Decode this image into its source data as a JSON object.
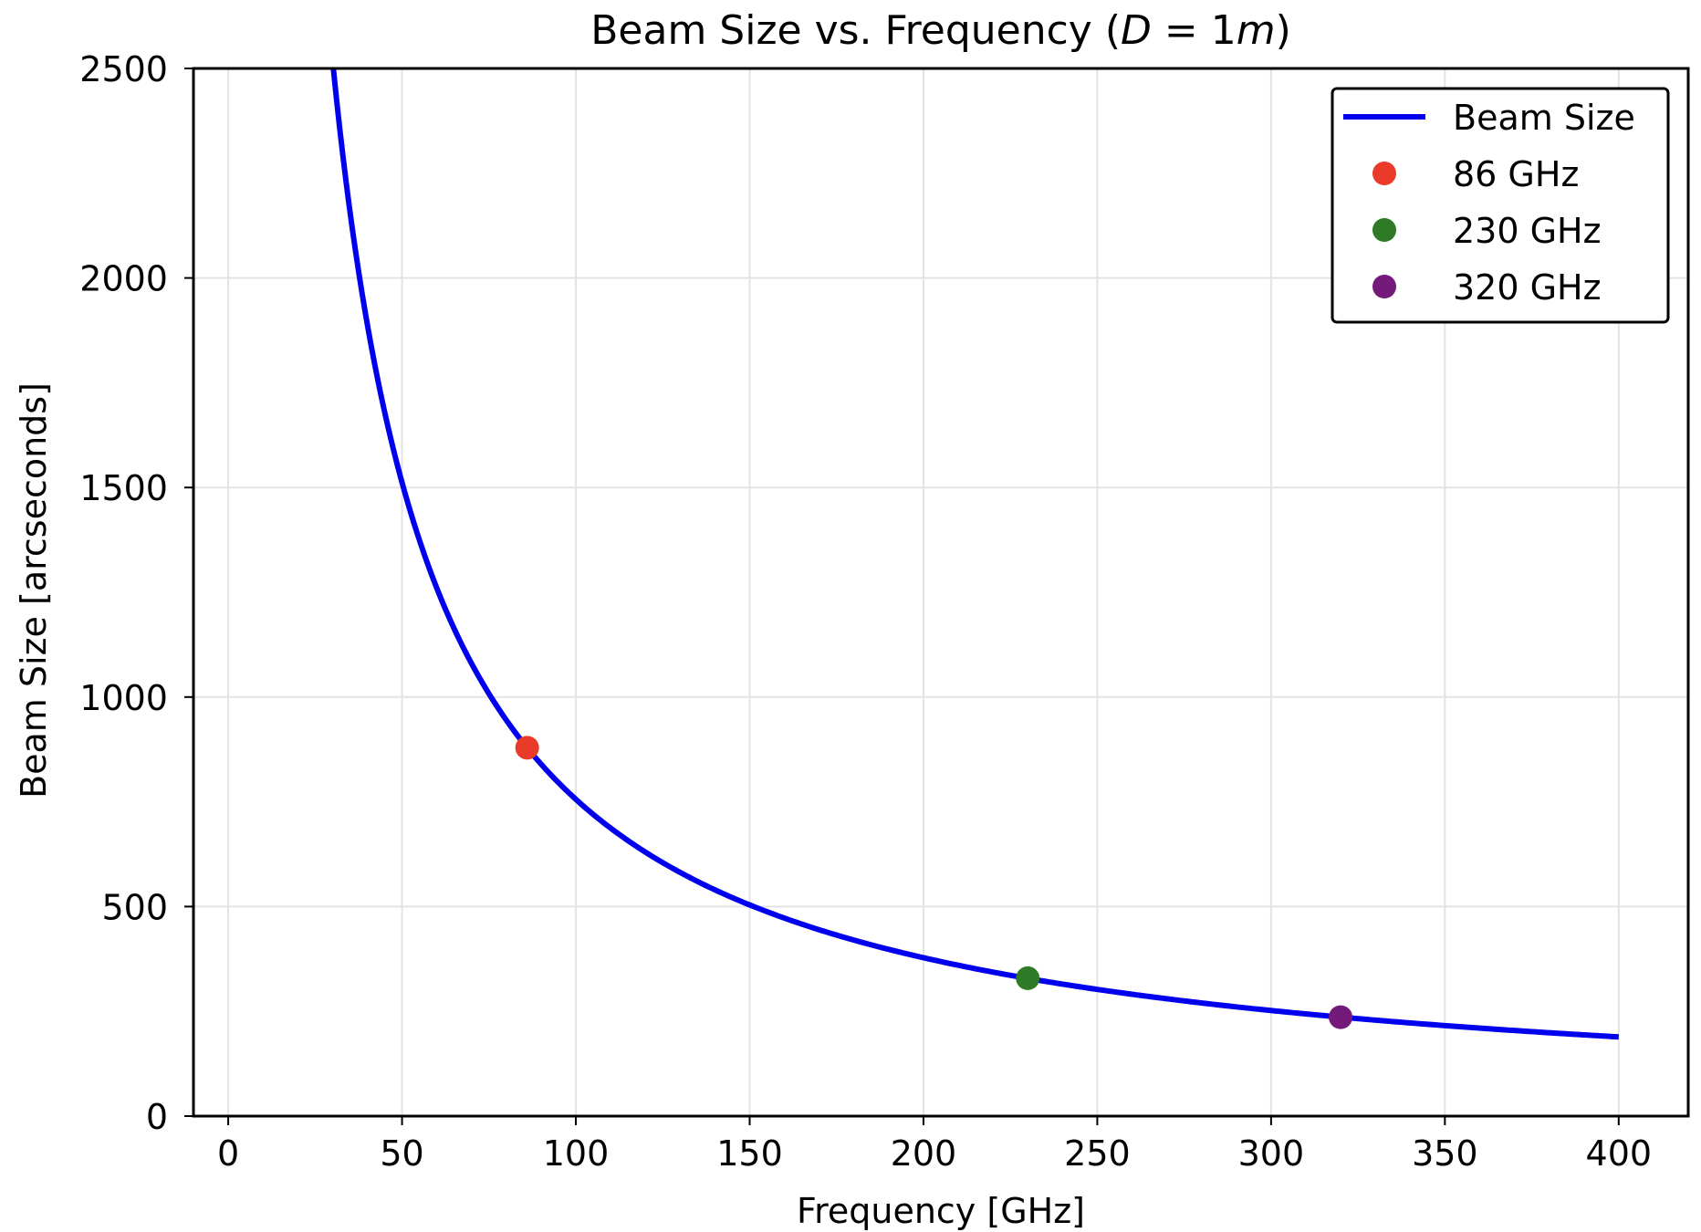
{
  "chart_data": {
    "type": "line",
    "title": {
      "prefix": "Beam Size vs. Frequency (",
      "var_d": "D",
      "eq": " = 1",
      "var_m": "m",
      "suffix": ")"
    },
    "xlabel": "Frequency [GHz]",
    "ylabel": "Beam Size [arcseconds]",
    "xlim": [
      -10,
      420
    ],
    "ylim": [
      0,
      2500
    ],
    "xticks": [
      "0",
      "50",
      "100",
      "150",
      "200",
      "250",
      "300",
      "350",
      "400"
    ],
    "yticks": [
      "0",
      "500",
      "1000",
      "1500",
      "2000",
      "2500"
    ],
    "grid": true,
    "legend_position": "top-right",
    "series": [
      {
        "name": "Beam Size",
        "color": "#0000ee",
        "kind": "line",
        "formula": "beam = 75600 / frequency",
        "x": [
          30,
          35,
          40,
          45,
          50,
          60,
          70,
          86,
          100,
          120,
          150,
          200,
          230,
          250,
          300,
          320,
          350,
          400
        ],
        "y": [
          2520,
          2160,
          1890,
          1680,
          1512,
          1260,
          1080,
          879,
          756,
          630,
          504,
          378,
          329,
          302,
          252,
          236,
          216,
          189
        ]
      }
    ],
    "markers": [
      {
        "name": "86 GHz",
        "x": 86,
        "y": 879,
        "color": "#ea3a2a"
      },
      {
        "name": "230 GHz",
        "x": 230,
        "y": 329,
        "color": "#2f7a26"
      },
      {
        "name": "320 GHz",
        "x": 320,
        "y": 236,
        "color": "#731a7a"
      }
    ]
  }
}
